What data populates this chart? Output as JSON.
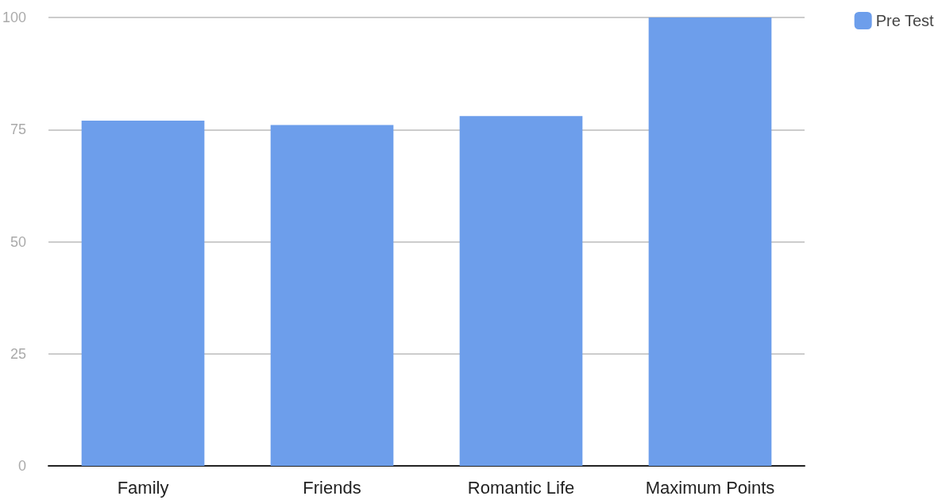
{
  "chart_data": {
    "type": "bar",
    "categories": [
      "Family",
      "Friends",
      "Romantic Life",
      "Maximum Points"
    ],
    "series": [
      {
        "name": "Pre Test",
        "color": "#6d9eeb",
        "values": [
          77,
          76,
          78,
          100
        ]
      }
    ],
    "ylim": [
      0,
      100
    ],
    "yticks": [
      0,
      25,
      50,
      75,
      100
    ],
    "grid": "y",
    "legend": "top right"
  }
}
